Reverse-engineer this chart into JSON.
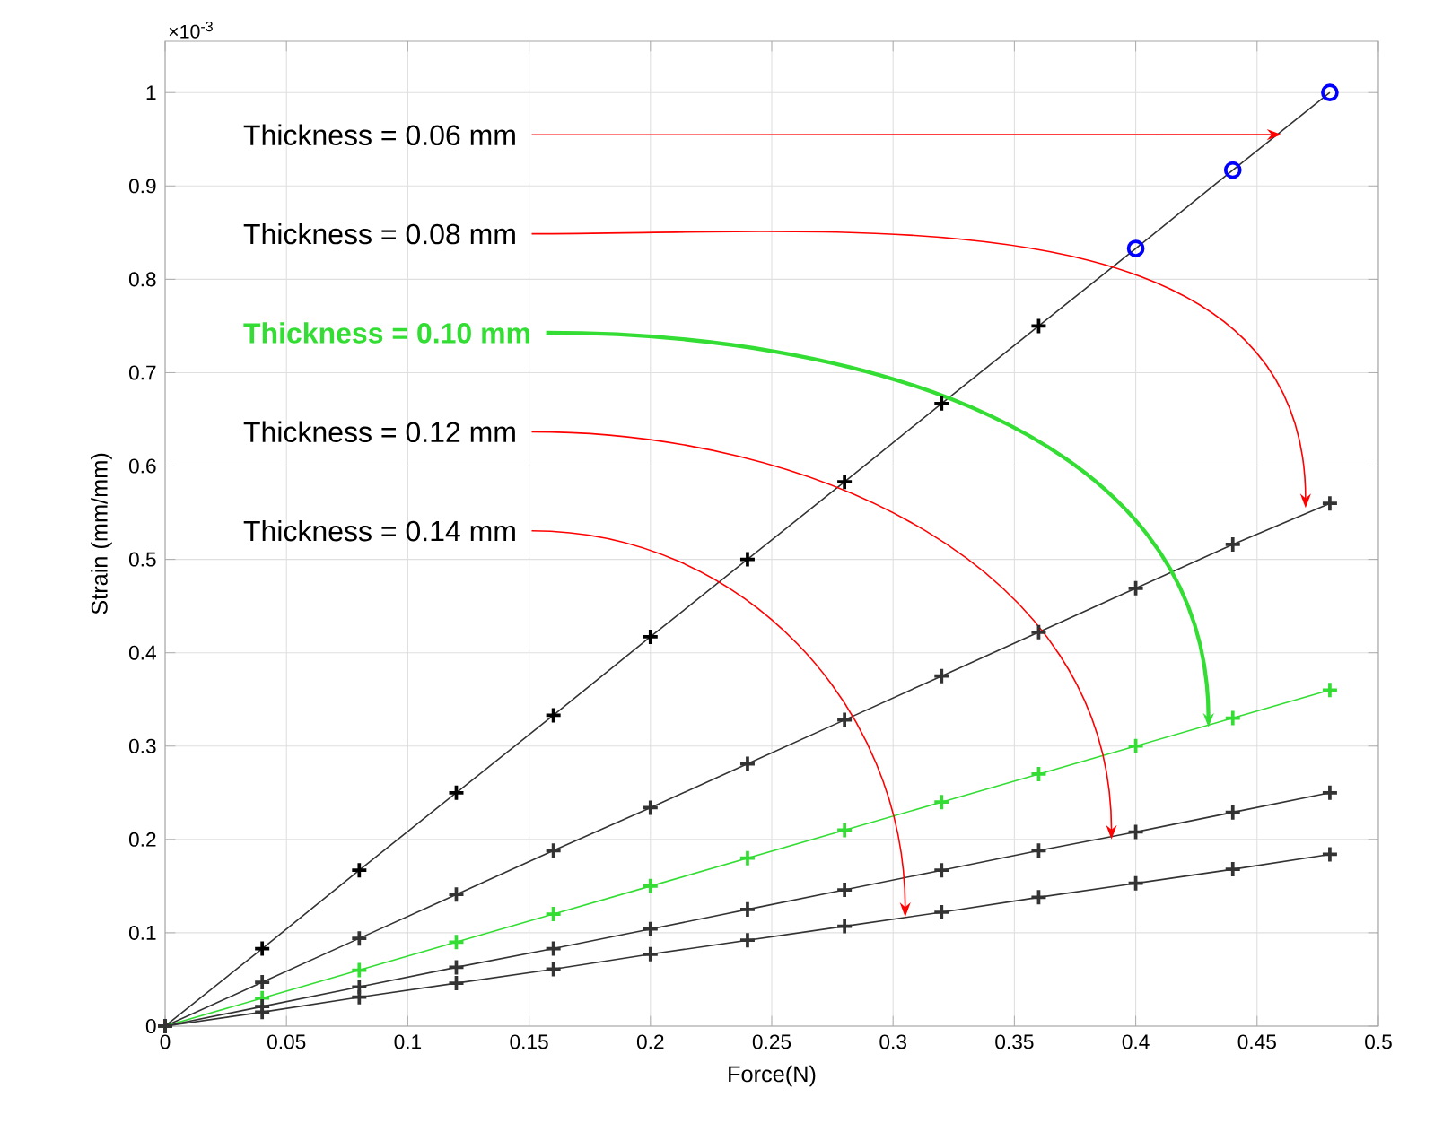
{
  "chart_data": {
    "type": "line",
    "xlabel": "Force(N)",
    "ylabel": "Strain (mm/mm)",
    "x": [
      0,
      0.04,
      0.08,
      0.12,
      0.16,
      0.2,
      0.24,
      0.28,
      0.32,
      0.36,
      0.4,
      0.44,
      0.48
    ],
    "series": [
      {
        "color": "#333333",
        "marker": "none",
        "values": [
          0,
          0.083,
          0.167,
          0.25,
          0.333,
          0.417,
          0.5,
          0.583,
          0.667,
          0.75,
          0.833,
          0.917,
          1.0
        ]
      },
      {
        "type": "scatter",
        "color": "#000000",
        "marker": "cross",
        "x": [
          0.04,
          0.08,
          0.12,
          0.16,
          0.2,
          0.24,
          0.28,
          0.32,
          0.36
        ],
        "values": [
          0.083,
          0.167,
          0.25,
          0.333,
          0.417,
          0.5,
          0.583,
          0.667,
          0.75
        ]
      },
      {
        "type": "scatter",
        "color": "#0000ff",
        "marker": "circle",
        "x": [
          0.4,
          0.44,
          0.48
        ],
        "values": [
          0.833,
          0.917,
          1.0
        ]
      },
      {
        "color": "#333333",
        "marker": "cross",
        "values": [
          0,
          0.047,
          0.094,
          0.141,
          0.188,
          0.234,
          0.281,
          0.328,
          0.375,
          0.422,
          0.469,
          0.516,
          0.56
        ]
      },
      {
        "color": "#33dd33",
        "marker": "cross",
        "values": [
          0,
          0.03,
          0.06,
          0.09,
          0.12,
          0.15,
          0.18,
          0.21,
          0.24,
          0.27,
          0.3,
          0.33,
          0.36
        ]
      },
      {
        "color": "#333333",
        "marker": "cross",
        "values": [
          0,
          0.021,
          0.042,
          0.063,
          0.083,
          0.104,
          0.125,
          0.146,
          0.167,
          0.188,
          0.208,
          0.229,
          0.25
        ]
      },
      {
        "color": "#333333",
        "marker": "cross",
        "values": [
          0,
          0.015,
          0.031,
          0.046,
          0.061,
          0.077,
          0.092,
          0.107,
          0.122,
          0.138,
          0.153,
          0.168,
          0.184
        ]
      }
    ],
    "xlim": [
      0,
      0.5
    ],
    "ylim": [
      0,
      1.055
    ],
    "xticks": [
      0,
      0.05,
      0.1,
      0.15,
      0.2,
      0.25,
      0.3,
      0.35,
      0.4,
      0.45,
      0.5
    ],
    "yticks": [
      0,
      0.1,
      0.2,
      0.3,
      0.4,
      0.5,
      0.6,
      0.7,
      0.8,
      0.9,
      1
    ],
    "grid": true,
    "annotations": [
      "×10$^{-3}$",
      {
        "text": "Thickness = 0.06 mm",
        "x": 0.46,
        "y": 0.955
      },
      {
        "text": "Thickness = 0.08 mm",
        "x": 0.47,
        "y": 0.555
      },
      {
        "text": "**Thickness = 0.10 mm**",
        "x": 0.43,
        "y": 0.32
      },
      {
        "text": "Thickness = 0.12 mm",
        "x": 0.39,
        "y": 0.2
      },
      {
        "text": "Thickness = 0.14 mm",
        "x": 0.305,
        "y": 0.117
      }
    ]
  }
}
